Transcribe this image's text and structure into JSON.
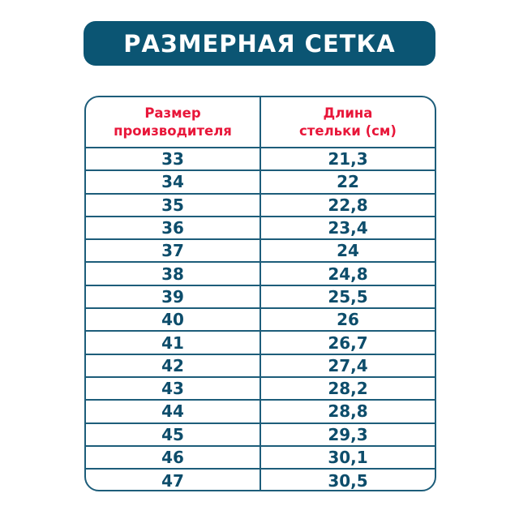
{
  "title": "РАЗМЕРНАЯ СЕТКА",
  "table": {
    "headers": [
      "Размер\nпроизводителя",
      "Длина\nстельки (см)"
    ],
    "header_lines": [
      [
        "Размер",
        "производителя"
      ],
      [
        "Длина",
        "стельки (см)"
      ]
    ],
    "rows": [
      [
        "33",
        "21,3"
      ],
      [
        "34",
        "22"
      ],
      [
        "35",
        "22,8"
      ],
      [
        "36",
        "23,4"
      ],
      [
        "37",
        "24"
      ],
      [
        "38",
        "24,8"
      ],
      [
        "39",
        "25,5"
      ],
      [
        "40",
        "26"
      ],
      [
        "41",
        "26,7"
      ],
      [
        "42",
        "27,4"
      ],
      [
        "43",
        "28,2"
      ],
      [
        "44",
        "28,8"
      ],
      [
        "45",
        "29,3"
      ],
      [
        "46",
        "30,1"
      ],
      [
        "47",
        "30,5"
      ]
    ]
  },
  "colors": {
    "banner": "#0b5573",
    "header_text": "#e8173a",
    "body_text": "#0d4d6b",
    "border": "#1d5d7a"
  }
}
